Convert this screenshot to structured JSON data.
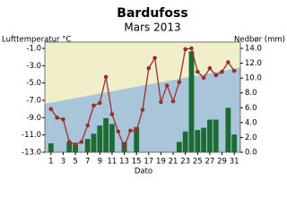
{
  "chart_data": {
    "type": "combo",
    "title": "Bardufoss",
    "subtitle": "Mars 2013",
    "ylabel": "Lufttemperatur °C",
    "y2label": "Nedbør (mm)",
    "xlabel": "Dato",
    "x": [
      1,
      2,
      3,
      4,
      5,
      6,
      7,
      8,
      9,
      10,
      11,
      12,
      13,
      14,
      15,
      16,
      17,
      18,
      19,
      20,
      21,
      22,
      23,
      24,
      25,
      26,
      27,
      28,
      29,
      30,
      31
    ],
    "xlim": [
      0,
      32
    ],
    "xticks": [
      1,
      3,
      5,
      7,
      9,
      11,
      13,
      15,
      17,
      19,
      21,
      23,
      25,
      27,
      29,
      31
    ],
    "ylim": [
      -13,
      -1
    ],
    "yticks": [
      {
        "value": -1,
        "label": "-1.0"
      },
      {
        "value": -3,
        "label": "-3.0"
      },
      {
        "value": -5,
        "label": "-5.0"
      },
      {
        "value": -7,
        "label": "-7.0"
      },
      {
        "value": -9,
        "label": "-9.0"
      },
      {
        "value": -11,
        "label": "-11.0"
      },
      {
        "value": -13,
        "label": "-13.0"
      }
    ],
    "y2lim": [
      0,
      14
    ],
    "y2ticks": [
      {
        "value": 0,
        "label": "0.0"
      },
      {
        "value": 2,
        "label": "2.0"
      },
      {
        "value": 4,
        "label": "4.0"
      },
      {
        "value": 6,
        "label": "6.0"
      },
      {
        "value": 8,
        "label": "8.0"
      },
      {
        "value": 10,
        "label": "10.0"
      },
      {
        "value": 12,
        "label": "12.0"
      },
      {
        "value": 14,
        "label": "14.0"
      }
    ],
    "normal": {
      "x": [
        0,
        32
      ],
      "values": [
        -7.4,
        -3.2
      ],
      "color": "#a9c5da",
      "background": "#f1efc9"
    },
    "series": [
      {
        "type": "bar",
        "axis": "y2",
        "color": "#1c6b34",
        "values": [
          1.2,
          0,
          0,
          1.4,
          1.0,
          0,
          1.8,
          2.5,
          3.6,
          4.6,
          3.8,
          0,
          1.4,
          0,
          3.4,
          0,
          0,
          0,
          0,
          0,
          0,
          1.4,
          2.8,
          13.6,
          3.0,
          3.3,
          4.4,
          4.4,
          0,
          6.0,
          2.4
        ]
      },
      {
        "type": "line",
        "color": "#9b2f2f",
        "values": [
          -8.0,
          -9.0,
          -9.2,
          -11.8,
          -12.1,
          -11.8,
          -9.9,
          -7.6,
          -7.3,
          -4.3,
          -8.6,
          -10.6,
          -12.4,
          -10.5,
          -10.5,
          -8.1,
          -3.3,
          -2.1,
          -7.2,
          -5.3,
          -7.1,
          -4.9,
          -1.1,
          -1.0,
          -3.7,
          -4.4,
          -3.3,
          -4.1,
          -3.7,
          -2.6,
          -3.6
        ]
      }
    ]
  }
}
